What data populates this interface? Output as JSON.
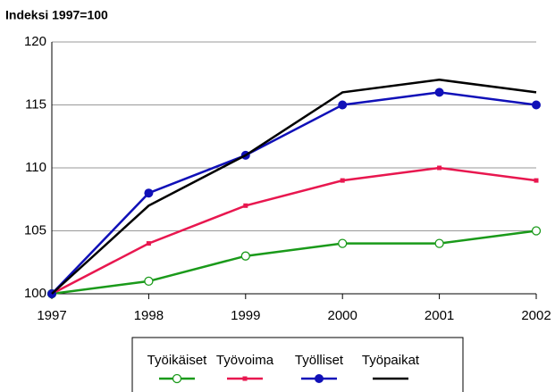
{
  "chart_data": {
    "type": "line",
    "title": "Indeksi 1997=100",
    "x": [
      1997,
      1998,
      1999,
      2000,
      2001,
      2002
    ],
    "xlim": [
      1997,
      2002
    ],
    "xticks": [
      1997,
      1998,
      1999,
      2000,
      2001,
      2002
    ],
    "ylim": [
      100,
      120
    ],
    "yticks": [
      100,
      105,
      110,
      115,
      120
    ],
    "grid": true,
    "legend": "bottom",
    "series": [
      {
        "name": "Työikäiset",
        "color": "#1a9a1a",
        "marker": "circle-open",
        "values": [
          100,
          101,
          103,
          104,
          104,
          105
        ]
      },
      {
        "name": "Työvoima",
        "color": "#e8174f",
        "marker": "square",
        "values": [
          100,
          104,
          107,
          109,
          110,
          109
        ]
      },
      {
        "name": "Työlliset",
        "color": "#1010b8",
        "marker": "circle",
        "values": [
          100,
          108,
          111,
          115,
          116,
          115
        ]
      },
      {
        "name": "Työpaikat",
        "color": "#000000",
        "marker": "none",
        "values": [
          100,
          107,
          111,
          116,
          117,
          116
        ]
      }
    ]
  }
}
